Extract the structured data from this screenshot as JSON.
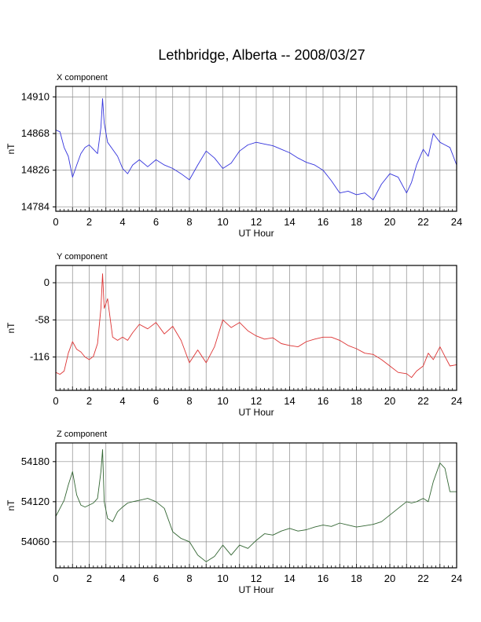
{
  "title": "Lethbridge, Alberta -- 2008/03/27",
  "chart_data": [
    {
      "type": "line",
      "panel_title": "X component",
      "xlabel": "UT Hour",
      "ylabel": "nT",
      "xlim": [
        0,
        24
      ],
      "ylim": [
        14779,
        14922
      ],
      "x_ticks": [
        0,
        2,
        4,
        6,
        8,
        10,
        12,
        14,
        16,
        18,
        20,
        22,
        24
      ],
      "y_ticks": [
        14784,
        14826,
        14868,
        14910
      ],
      "grid": true,
      "color": "#3333dd",
      "x": [
        0,
        0.25,
        0.5,
        0.75,
        1,
        1.25,
        1.5,
        1.75,
        2,
        2.25,
        2.5,
        2.7,
        2.8,
        2.9,
        3.1,
        3.4,
        3.7,
        4,
        4.3,
        4.6,
        5,
        5.5,
        6,
        6.5,
        7,
        7.5,
        8,
        8.5,
        9,
        9.5,
        10,
        10.5,
        11,
        11.5,
        12,
        12.5,
        13,
        13.5,
        14,
        14.5,
        15,
        15.5,
        16,
        16.5,
        17,
        17.5,
        18,
        18.5,
        19,
        19.5,
        20,
        20.5,
        21,
        21.3,
        21.6,
        22,
        22.3,
        22.6,
        23,
        23.3,
        23.6,
        24
      ],
      "y": [
        14872,
        14870,
        14852,
        14842,
        14818,
        14832,
        14845,
        14852,
        14855,
        14850,
        14845,
        14875,
        14908,
        14880,
        14858,
        14850,
        14842,
        14828,
        14822,
        14832,
        14838,
        14830,
        14838,
        14832,
        14828,
        14822,
        14815,
        14832,
        14848,
        14840,
        14828,
        14834,
        14848,
        14855,
        14858,
        14856,
        14854,
        14850,
        14846,
        14840,
        14835,
        14832,
        14826,
        14814,
        14800,
        14802,
        14798,
        14800,
        14792,
        14810,
        14822,
        14818,
        14800,
        14812,
        14832,
        14850,
        14842,
        14868,
        14858,
        14855,
        14852,
        14832
      ]
    },
    {
      "type": "line",
      "panel_title": "Y component",
      "xlabel": "UT Hour",
      "ylabel": "nT",
      "xlim": [
        0,
        24
      ],
      "ylim": [
        -168,
        27
      ],
      "x_ticks": [
        0,
        2,
        4,
        6,
        8,
        10,
        12,
        14,
        16,
        18,
        20,
        22,
        24
      ],
      "y_ticks": [
        -116,
        -58,
        0
      ],
      "grid": true,
      "color": "#dd3333",
      "x": [
        0,
        0.25,
        0.5,
        0.75,
        1,
        1.25,
        1.5,
        1.75,
        2,
        2.25,
        2.5,
        2.7,
        2.8,
        2.9,
        3.1,
        3.4,
        3.7,
        4,
        4.3,
        4.6,
        5,
        5.5,
        6,
        6.5,
        7,
        7.5,
        8,
        8.5,
        9,
        9.5,
        10,
        10.5,
        11,
        11.5,
        12,
        12.5,
        13,
        13.5,
        14,
        14.5,
        15,
        15.5,
        16,
        16.5,
        17,
        17.5,
        18,
        18.5,
        19,
        19.5,
        20,
        20.5,
        21,
        21.3,
        21.6,
        22,
        22.3,
        22.6,
        23,
        23.3,
        23.6,
        24
      ],
      "y": [
        -140,
        -143,
        -138,
        -110,
        -92,
        -104,
        -108,
        -116,
        -120,
        -115,
        -95,
        -40,
        14,
        -40,
        -25,
        -85,
        -90,
        -85,
        -90,
        -78,
        -65,
        -72,
        -62,
        -80,
        -68,
        -90,
        -125,
        -105,
        -125,
        -100,
        -58,
        -70,
        -62,
        -75,
        -83,
        -88,
        -86,
        -95,
        -98,
        -100,
        -92,
        -88,
        -85,
        -85,
        -90,
        -98,
        -103,
        -110,
        -112,
        -120,
        -130,
        -140,
        -142,
        -148,
        -138,
        -130,
        -110,
        -120,
        -100,
        -115,
        -130,
        -128
      ]
    },
    {
      "type": "line",
      "panel_title": "Z component",
      "xlabel": "UT Hour",
      "ylabel": "nT",
      "xlim": [
        0,
        24
      ],
      "ylim": [
        54021,
        54208
      ],
      "x_ticks": [
        0,
        2,
        4,
        6,
        8,
        10,
        12,
        14,
        16,
        18,
        20,
        22,
        24
      ],
      "y_ticks": [
        54060,
        54120,
        54180
      ],
      "grid": true,
      "color": "#336633",
      "x": [
        0,
        0.25,
        0.5,
        0.75,
        1,
        1.25,
        1.5,
        1.75,
        2,
        2.25,
        2.5,
        2.7,
        2.8,
        2.9,
        3.1,
        3.4,
        3.7,
        4,
        4.3,
        4.6,
        5,
        5.5,
        6,
        6.5,
        7,
        7.5,
        8,
        8.5,
        9,
        9.5,
        10,
        10.5,
        11,
        11.5,
        12,
        12.5,
        13,
        13.5,
        14,
        14.5,
        15,
        15.5,
        16,
        16.5,
        17,
        17.5,
        18,
        18.5,
        19,
        19.5,
        20,
        20.5,
        21,
        21.3,
        21.6,
        22,
        22.3,
        22.6,
        23,
        23.3,
        23.6,
        24
      ],
      "y": [
        54098,
        54110,
        54122,
        54145,
        54165,
        54130,
        54115,
        54112,
        54115,
        54118,
        54125,
        54165,
        54198,
        54120,
        54095,
        54090,
        54105,
        54112,
        54118,
        54120,
        54122,
        54125,
        54120,
        54110,
        54075,
        54065,
        54060,
        54040,
        54030,
        54038,
        54055,
        54040,
        54055,
        54050,
        54062,
        54072,
        54070,
        54076,
        54080,
        54076,
        54078,
        54082,
        54085,
        54083,
        54088,
        54085,
        54082,
        54084,
        54086,
        54090,
        54100,
        54110,
        54120,
        54118,
        54120,
        54125,
        54120,
        54150,
        54178,
        54170,
        54135,
        54135
      ]
    }
  ]
}
